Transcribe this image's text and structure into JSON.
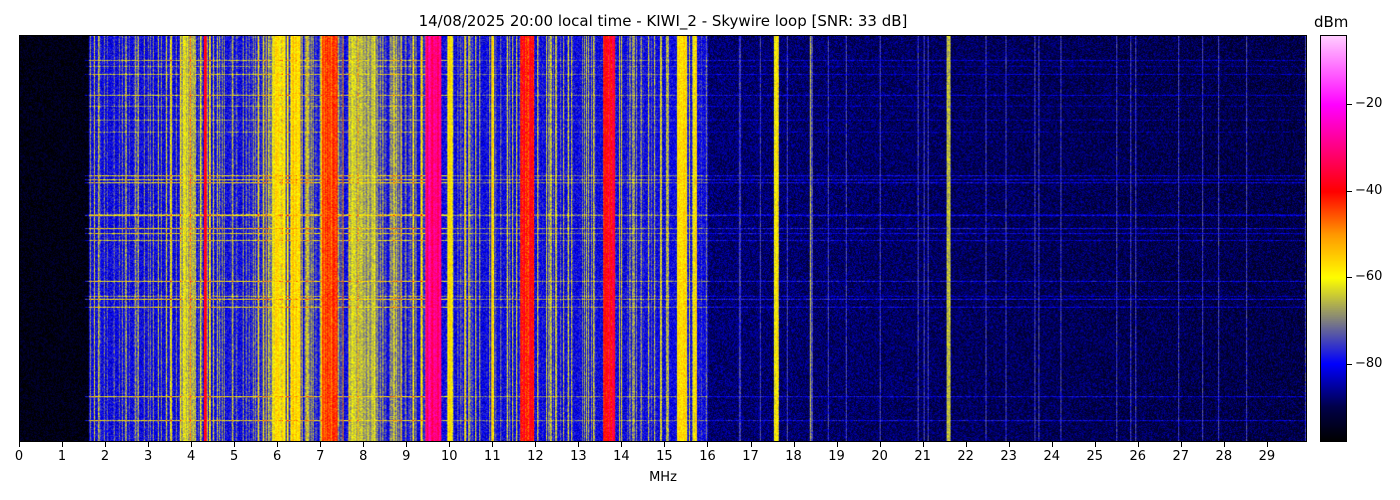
{
  "chart_data": {
    "type": "heatmap",
    "title": "14/08/2025 20:00 local time - KIWI_2 - Skywire loop [SNR: 33 dB]",
    "xlabel": "MHz",
    "xlim": [
      0,
      30
    ],
    "xticks": [
      "0",
      "1",
      "2",
      "3",
      "4",
      "5",
      "6",
      "7",
      "8",
      "9",
      "10",
      "11",
      "12",
      "13",
      "14",
      "15",
      "16",
      "17",
      "18",
      "19",
      "20",
      "21",
      "22",
      "23",
      "24",
      "25",
      "26",
      "27",
      "28",
      "29"
    ],
    "colorbar": {
      "label": "dBm",
      "range": [
        -98,
        -4
      ],
      "ticks": [
        -20,
        -40,
        -60,
        -80
      ],
      "tick_labels": [
        "−20",
        "−40",
        "−60",
        "−80"
      ],
      "colormap": [
        "#000000",
        "#00004a",
        "#0000ff",
        "#7f7f80",
        "#ffff00",
        "#ff9900",
        "#ff0000",
        "#ff00ff",
        "#ffccff"
      ]
    },
    "noise_floor_dbm": [
      {
        "from_mhz": 0,
        "to_mhz": 1.6,
        "level": -96
      },
      {
        "from_mhz": 1.6,
        "to_mhz": 16,
        "level": -80
      },
      {
        "from_mhz": 16,
        "to_mhz": 30,
        "level": -88
      }
    ],
    "strong_signals": [
      {
        "mhz": 3.9,
        "width": 0.3,
        "level": -65
      },
      {
        "mhz": 4.3,
        "width": 0.05,
        "level": -42
      },
      {
        "mhz": 6.0,
        "width": 0.3,
        "level": -60
      },
      {
        "mhz": 6.4,
        "width": 0.2,
        "level": -55
      },
      {
        "mhz": 7.2,
        "width": 0.35,
        "level": -45
      },
      {
        "mhz": 8.0,
        "width": 0.6,
        "level": -65
      },
      {
        "mhz": 9.6,
        "width": 0.35,
        "level": -30
      },
      {
        "mhz": 10.0,
        "width": 0.1,
        "level": -58
      },
      {
        "mhz": 11.0,
        "width": 0.05,
        "level": -58
      },
      {
        "mhz": 11.8,
        "width": 0.3,
        "level": -40
      },
      {
        "mhz": 13.7,
        "width": 0.25,
        "level": -38
      },
      {
        "mhz": 15.4,
        "width": 0.2,
        "level": -58
      },
      {
        "mhz": 15.7,
        "width": 0.05,
        "level": -58
      },
      {
        "mhz": 17.6,
        "width": 0.1,
        "level": -60
      },
      {
        "mhz": 18.4,
        "width": 0.05,
        "level": -70
      },
      {
        "mhz": 21.6,
        "width": 0.05,
        "level": -70
      }
    ]
  }
}
